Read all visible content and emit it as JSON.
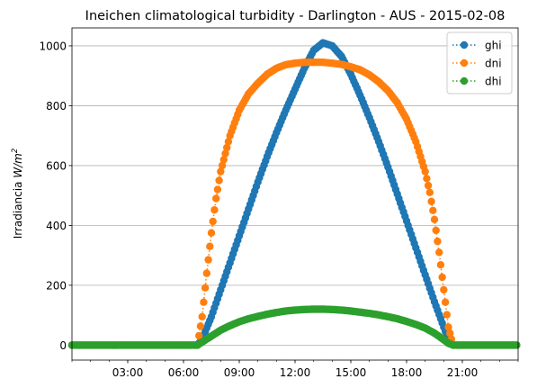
{
  "chart_data": {
    "type": "line",
    "title": "Ineichen climatological turbidity - Darlington - AUS - 2015-02-08",
    "ylabel_main": "Irradiancia ",
    "ylabel_unit": "W/m",
    "ylabel_exp": "2",
    "xlabel": "",
    "xlim_hours": [
      0.0,
      24.0
    ],
    "ylim": [
      -50,
      1060
    ],
    "x_ticks": [
      {
        "hour": 3,
        "label": "03:00"
      },
      {
        "hour": 6,
        "label": "06:00"
      },
      {
        "hour": 9,
        "label": "09:00"
      },
      {
        "hour": 12,
        "label": "12:00"
      },
      {
        "hour": 15,
        "label": "15:00"
      },
      {
        "hour": 18,
        "label": "18:00"
      },
      {
        "hour": 21,
        "label": "21:00"
      }
    ],
    "y_ticks": [
      0,
      200,
      400,
      600,
      800,
      1000
    ],
    "grid": "y-axis",
    "legend_position": "top-right",
    "sampling": "5-minute points from 00:00 to 23:55",
    "series": [
      {
        "name": "ghi",
        "color": "#1f77b4",
        "points": [
          [
            6.75,
            0
          ],
          [
            7.0,
            20
          ],
          [
            7.5,
            95
          ],
          [
            8.0,
            185
          ],
          [
            8.5,
            275
          ],
          [
            9.0,
            365
          ],
          [
            9.5,
            455
          ],
          [
            10.0,
            545
          ],
          [
            10.5,
            630
          ],
          [
            11.0,
            710
          ],
          [
            11.5,
            785
          ],
          [
            12.0,
            855
          ],
          [
            12.5,
            925
          ],
          [
            13.0,
            985
          ],
          [
            13.5,
            1010
          ],
          [
            14.0,
            1000
          ],
          [
            14.5,
            965
          ],
          [
            15.0,
            905
          ],
          [
            15.5,
            835
          ],
          [
            16.0,
            760
          ],
          [
            16.5,
            680
          ],
          [
            17.0,
            595
          ],
          [
            17.5,
            505
          ],
          [
            18.0,
            415
          ],
          [
            18.5,
            325
          ],
          [
            19.0,
            235
          ],
          [
            19.5,
            145
          ],
          [
            20.0,
            60
          ],
          [
            20.25,
            18
          ],
          [
            20.5,
            0
          ]
        ]
      },
      {
        "name": "dni",
        "color": "#ff7f0e",
        "points": [
          [
            6.75,
            0
          ],
          [
            7.0,
            95
          ],
          [
            7.25,
            240
          ],
          [
            7.5,
            375
          ],
          [
            7.75,
            490
          ],
          [
            8.0,
            580
          ],
          [
            8.5,
            700
          ],
          [
            9.0,
            785
          ],
          [
            9.5,
            840
          ],
          [
            10.0,
            875
          ],
          [
            10.5,
            905
          ],
          [
            11.0,
            925
          ],
          [
            11.5,
            937
          ],
          [
            12.0,
            942
          ],
          [
            12.5,
            945
          ],
          [
            13.0,
            945
          ],
          [
            13.5,
            945
          ],
          [
            14.0,
            942
          ],
          [
            14.5,
            938
          ],
          [
            15.0,
            930
          ],
          [
            15.5,
            920
          ],
          [
            16.0,
            903
          ],
          [
            16.5,
            880
          ],
          [
            17.0,
            850
          ],
          [
            17.5,
            810
          ],
          [
            18.0,
            755
          ],
          [
            18.5,
            680
          ],
          [
            19.0,
            580
          ],
          [
            19.25,
            510
          ],
          [
            19.5,
            420
          ],
          [
            19.75,
            310
          ],
          [
            20.0,
            185
          ],
          [
            20.25,
            60
          ],
          [
            20.5,
            0
          ]
        ]
      },
      {
        "name": "dhi",
        "color": "#2ca02c",
        "points": [
          [
            6.75,
            0
          ],
          [
            7.0,
            10
          ],
          [
            7.5,
            30
          ],
          [
            8.0,
            50
          ],
          [
            8.5,
            65
          ],
          [
            9.0,
            78
          ],
          [
            9.5,
            88
          ],
          [
            10.0,
            96
          ],
          [
            10.5,
            103
          ],
          [
            11.0,
            109
          ],
          [
            11.5,
            114
          ],
          [
            12.0,
            117
          ],
          [
            12.5,
            119
          ],
          [
            13.0,
            120
          ],
          [
            13.5,
            120
          ],
          [
            14.0,
            119
          ],
          [
            14.5,
            117
          ],
          [
            15.0,
            114
          ],
          [
            15.5,
            110
          ],
          [
            16.0,
            106
          ],
          [
            16.5,
            101
          ],
          [
            17.0,
            95
          ],
          [
            17.5,
            88
          ],
          [
            18.0,
            79
          ],
          [
            18.5,
            69
          ],
          [
            19.0,
            57
          ],
          [
            19.5,
            40
          ],
          [
            20.0,
            18
          ],
          [
            20.25,
            6
          ],
          [
            20.5,
            0
          ]
        ]
      }
    ]
  }
}
